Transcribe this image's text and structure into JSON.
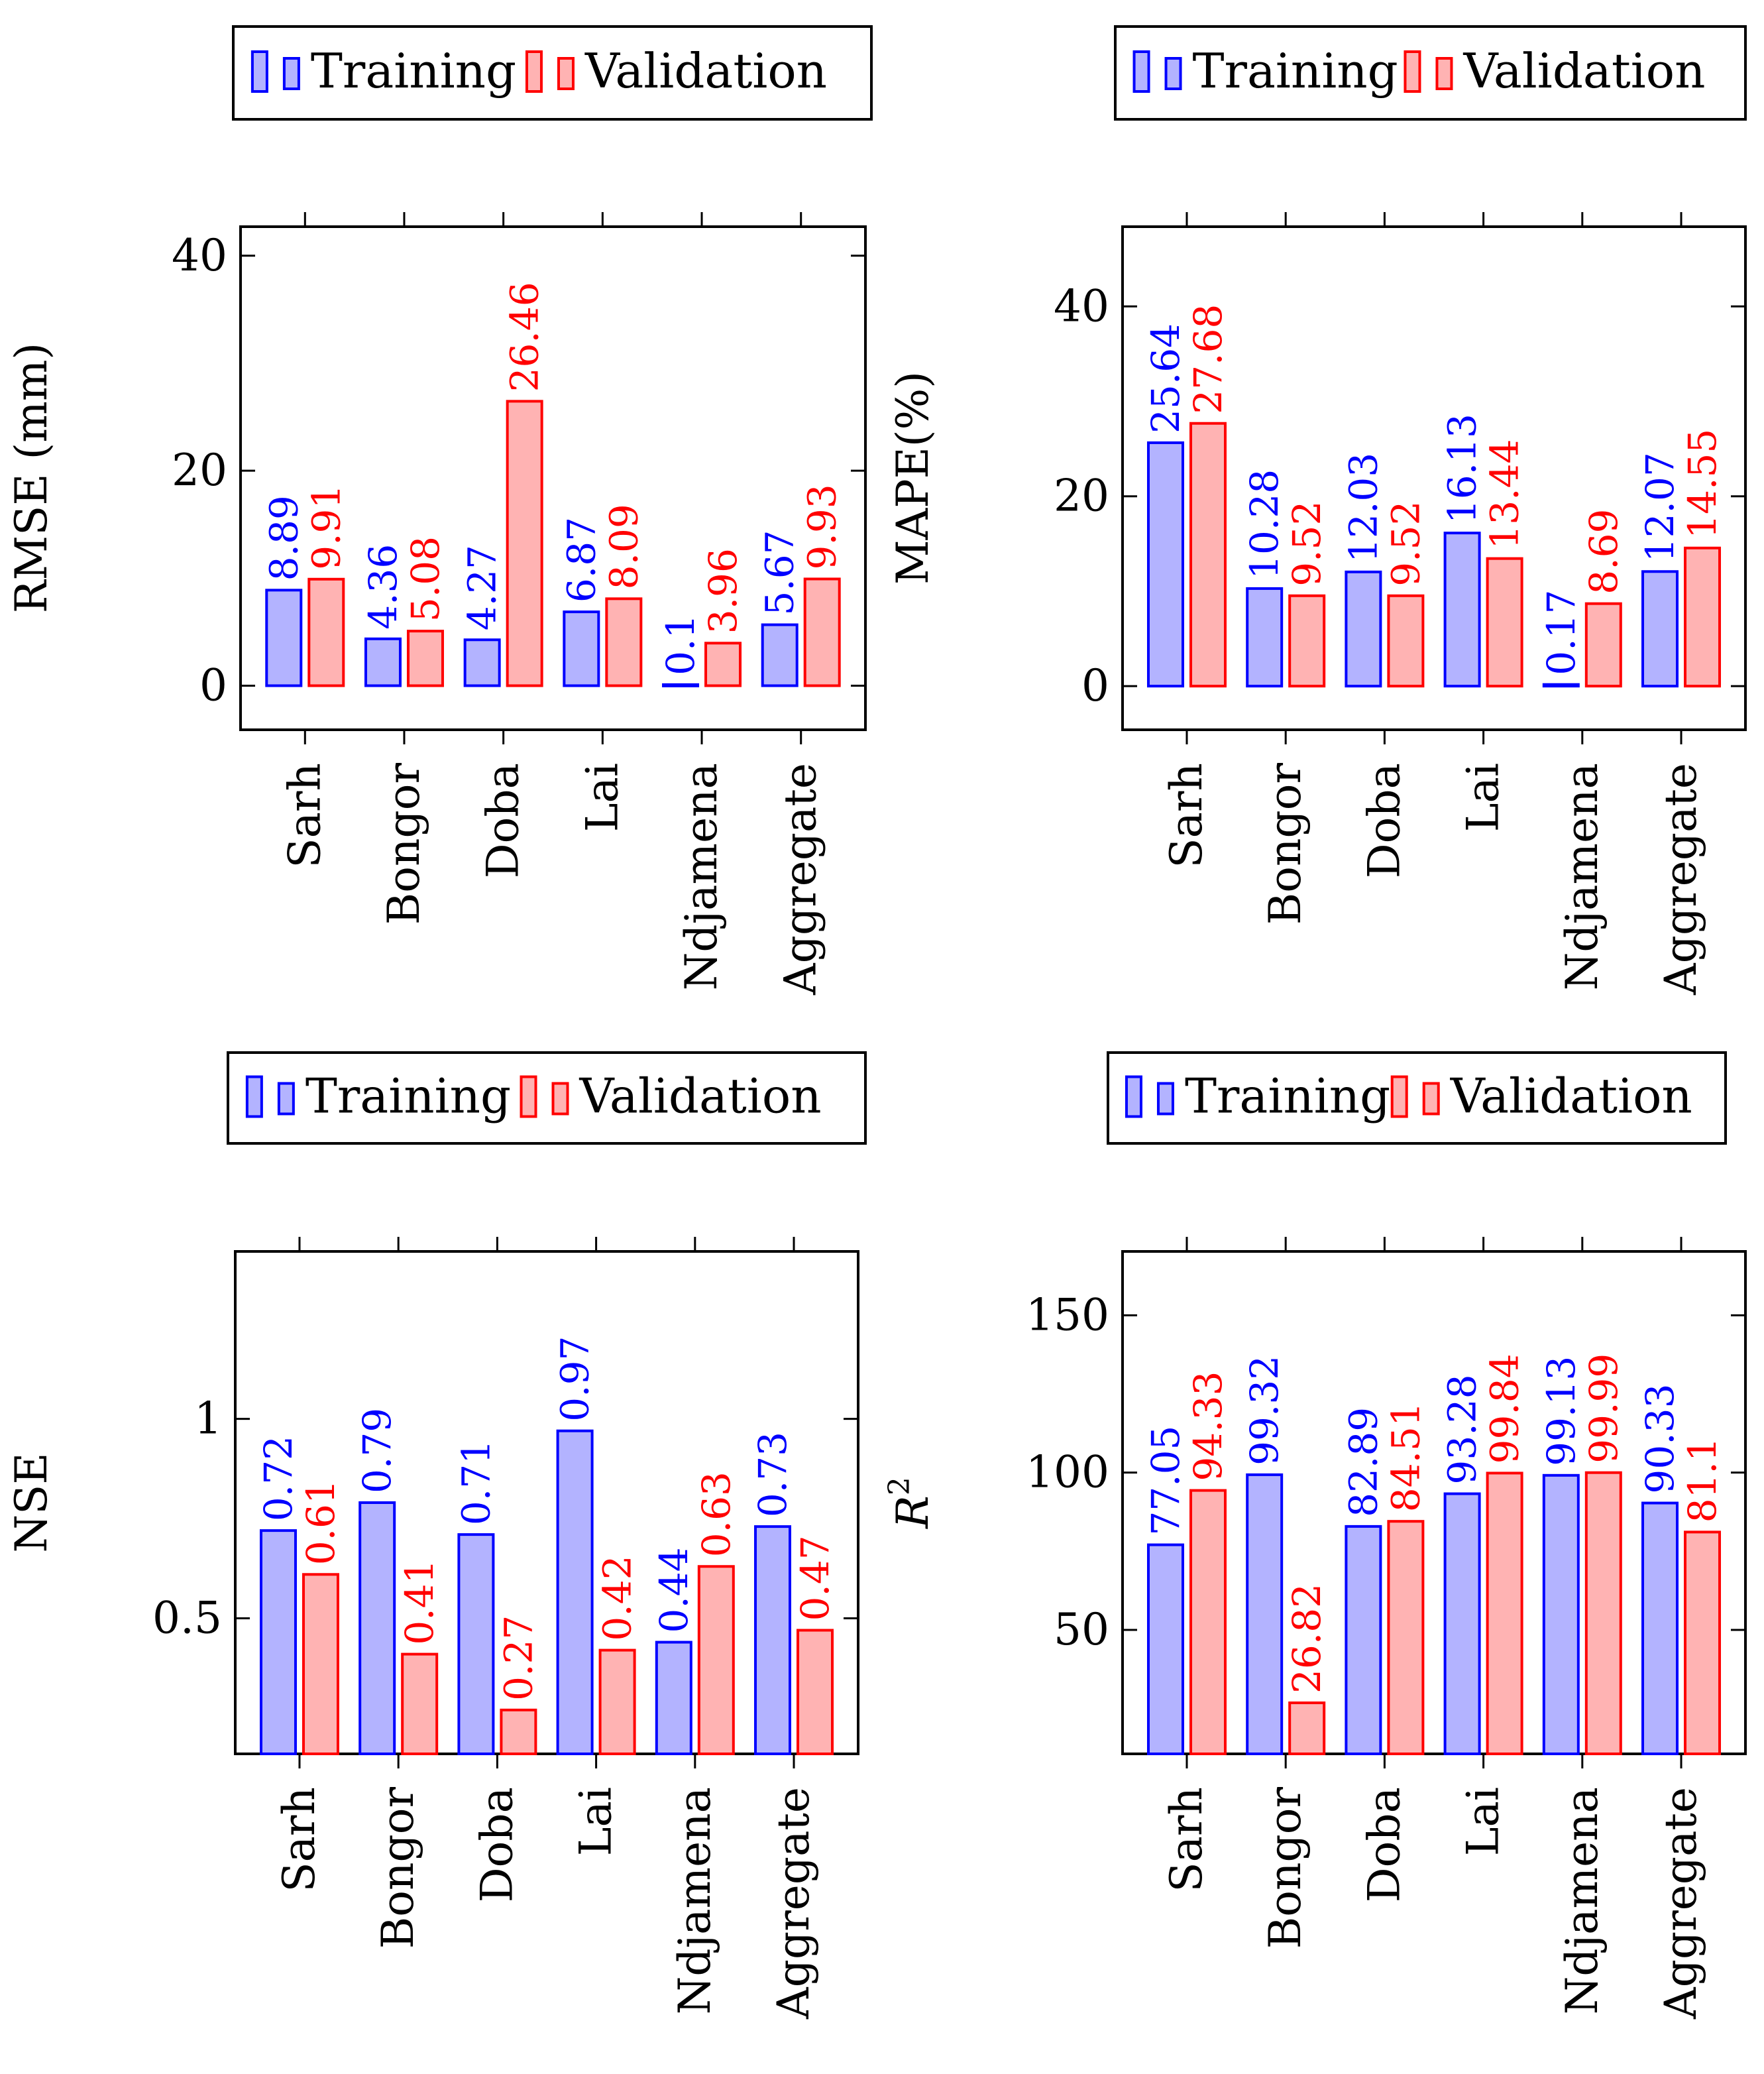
{
  "colors": {
    "training_fill": "#b3b3ff",
    "training_stroke": "#0000ff",
    "validation_fill": "#ffb3b3",
    "validation_stroke": "#ff0000",
    "axis": "#000000"
  },
  "chart_data": [
    {
      "type": "bar",
      "ylabel": "RMSE (mm)",
      "categories": [
        "Sarh",
        "Bongor",
        "Doba",
        "Lai",
        "Ndjamena",
        "Aggregate"
      ],
      "series": [
        {
          "name": "Training",
          "values": [
            8.89,
            4.36,
            4.27,
            6.87,
            0.1,
            5.67
          ],
          "labels": [
            "8.89",
            "4.36",
            "4.27",
            "6.87",
            "0.1",
            "5.67"
          ]
        },
        {
          "name": "Validation",
          "values": [
            9.91,
            5.08,
            26.46,
            8.09,
            3.96,
            9.93
          ],
          "labels": [
            "9.91",
            "5.08",
            "26.46",
            "8.09",
            "3.96",
            "9.93"
          ]
        }
      ],
      "ylim": [
        -4.1,
        42.7
      ],
      "yticks": [
        0,
        20,
        40
      ],
      "ytick_labels": [
        "0",
        "20",
        "40"
      ],
      "legend_position": "top-center"
    },
    {
      "type": "bar",
      "ylabel": "MAPE(%)",
      "categories": [
        "Sarh",
        "Bongor",
        "Doba",
        "Lai",
        "Ndjamena",
        "Aggregate"
      ],
      "series": [
        {
          "name": "Training",
          "values": [
            25.64,
            10.28,
            12.03,
            16.13,
            0.17,
            12.07
          ],
          "labels": [
            "25.64",
            "10.28",
            "12.03",
            "16.13",
            "0.17",
            "12.07"
          ]
        },
        {
          "name": "Validation",
          "values": [
            27.68,
            9.52,
            9.52,
            13.44,
            8.69,
            14.55
          ],
          "labels": [
            "27.68",
            "9.52",
            "9.52",
            "13.44",
            "8.69",
            "14.55"
          ]
        }
      ],
      "ylim": [
        -4.6,
        48.4
      ],
      "yticks": [
        0,
        20,
        40
      ],
      "ytick_labels": [
        "0",
        "20",
        "40"
      ],
      "legend_position": "top-center"
    },
    {
      "type": "bar",
      "ylabel": "NSE",
      "categories": [
        "Sarh",
        "Bongor",
        "Doba",
        "Lai",
        "Ndjamena",
        "Aggregate"
      ],
      "series": [
        {
          "name": "Training",
          "values": [
            0.72,
            0.79,
            0.71,
            0.97,
            0.44,
            0.73
          ],
          "labels": [
            "0.72",
            "0.79",
            "0.71",
            "0.97",
            "0.44",
            "0.73"
          ]
        },
        {
          "name": "Validation",
          "values": [
            0.61,
            0.41,
            0.27,
            0.42,
            0.63,
            0.47
          ],
          "labels": [
            "0.61",
            "0.41",
            "0.27",
            "0.42",
            "0.63",
            "0.47"
          ]
        }
      ],
      "ylim": [
        0.16,
        1.42
      ],
      "yticks": [
        0.5,
        1
      ],
      "ytick_labels": [
        "0.5",
        "1"
      ],
      "legend_position": "top-center"
    },
    {
      "type": "bar",
      "ylabel": "R",
      "ylabel_superscript": "2",
      "categories": [
        "Sarh",
        "Bongor",
        "Doba",
        "Lai",
        "Ndjamena",
        "Aggregate"
      ],
      "series": [
        {
          "name": "Training",
          "values": [
            77.05,
            99.32,
            82.89,
            93.28,
            99.13,
            90.33
          ],
          "labels": [
            "77.05",
            "99.32",
            "82.89",
            "93.28",
            "99.13",
            "90.33"
          ]
        },
        {
          "name": "Validation",
          "values": [
            94.33,
            26.82,
            84.51,
            99.84,
            99.99,
            81.1
          ],
          "labels": [
            "94.33",
            "26.82",
            "84.51",
            "99.84",
            "99.99",
            "81.1"
          ]
        }
      ],
      "ylim": [
        10.6,
        170.3
      ],
      "yticks": [
        50,
        100,
        150
      ],
      "ytick_labels": [
        "50",
        "100",
        "150"
      ],
      "legend_position": "top-center"
    }
  ]
}
